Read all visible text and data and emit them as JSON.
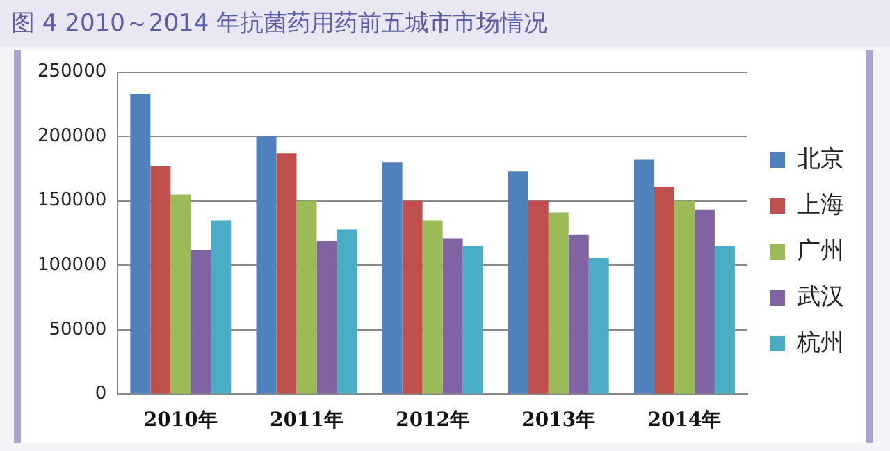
{
  "chart_data": {
    "type": "bar",
    "title": "图 4  2010～2014 年抗菌药用药前五城市市场情况",
    "categories": [
      "2010年",
      "2011年",
      "2012年",
      "2013年",
      "2014年"
    ],
    "series": [
      {
        "name": "北京",
        "color": "#4f81bd",
        "values": [
          233000,
          200000,
          180000,
          173000,
          182000
        ]
      },
      {
        "name": "上海",
        "color": "#c0504d",
        "values": [
          177000,
          187000,
          150000,
          150000,
          161000
        ]
      },
      {
        "name": "广州",
        "color": "#9bbb59",
        "values": [
          155000,
          150000,
          135000,
          141000,
          150000
        ]
      },
      {
        "name": "武汉",
        "color": "#8064a2",
        "values": [
          112000,
          119000,
          121000,
          124000,
          143000
        ]
      },
      {
        "name": "杭州",
        "color": "#4bacc6",
        "values": [
          135000,
          128000,
          115000,
          106000,
          115000
        ]
      }
    ],
    "ylim": [
      0,
      250000
    ],
    "yticks": [
      0,
      50000,
      100000,
      150000,
      200000,
      250000
    ],
    "grid": "y",
    "legend": "right"
  }
}
